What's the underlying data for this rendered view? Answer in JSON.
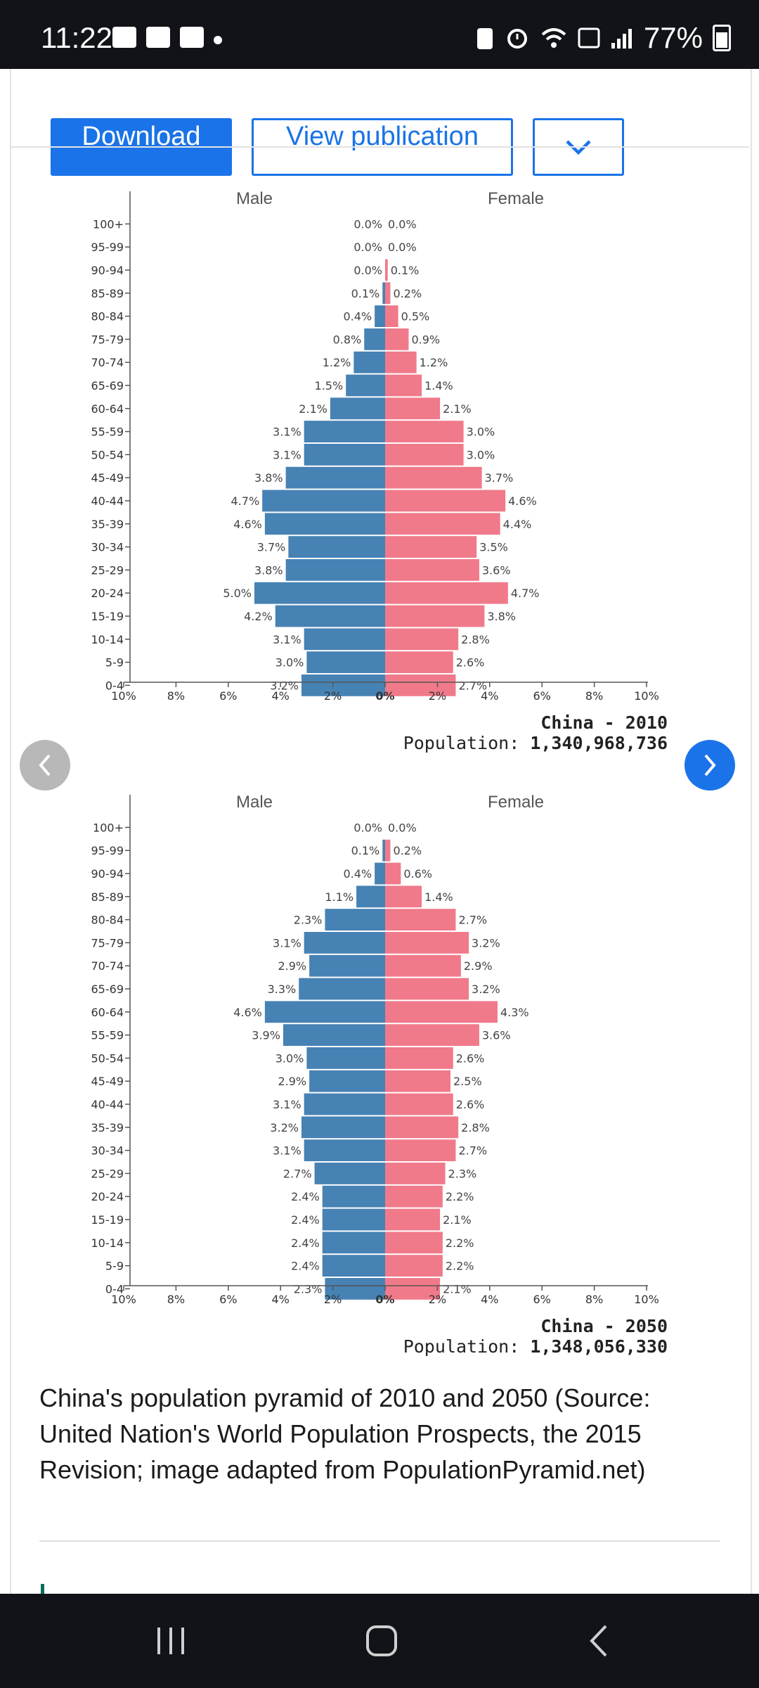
{
  "status_bar": {
    "time": "11:22",
    "battery": "77%"
  },
  "actions": {
    "download": "Download",
    "view_publication": "View publication"
  },
  "carousel": {
    "prev_icon": "chevron-left-icon",
    "next_icon": "chevron-right-icon"
  },
  "caption": "China's population pyramid of 2010 and 2050 (Source: United Nation's World Population Prospects, the 2015 Revision; image adapted from PopulationPyramid.net)",
  "colors": {
    "male": "#4682b4",
    "female": "#f07a8a",
    "accent": "#1a73e8"
  },
  "chart_data": [
    {
      "type": "bar",
      "title": "China - 2010",
      "subtitle_label": "Population:",
      "subtitle_value": "1,340,968,736",
      "male_label": "Male",
      "female_label": "Female",
      "categories": [
        "100+",
        "95-99",
        "90-94",
        "85-89",
        "80-84",
        "75-79",
        "70-74",
        "65-69",
        "60-64",
        "55-59",
        "50-54",
        "45-49",
        "40-44",
        "35-39",
        "30-34",
        "25-29",
        "20-24",
        "15-19",
        "10-14",
        "5-9",
        "0-4"
      ],
      "series": [
        {
          "name": "Male",
          "values": [
            0.0,
            0.0,
            0.0,
            0.1,
            0.4,
            0.8,
            1.2,
            1.5,
            2.1,
            3.1,
            3.1,
            3.8,
            4.7,
            4.6,
            3.7,
            3.8,
            5.0,
            4.2,
            3.1,
            3.0,
            3.2
          ]
        },
        {
          "name": "Female",
          "values": [
            0.0,
            0.0,
            0.1,
            0.2,
            0.5,
            0.9,
            1.2,
            1.4,
            2.1,
            3.0,
            3.0,
            3.7,
            4.6,
            4.4,
            3.5,
            3.6,
            4.7,
            3.8,
            2.8,
            2.6,
            2.7
          ]
        }
      ],
      "data_labels": {
        "male": [
          "0.0%",
          "0.0%",
          "0.0%",
          "0.1%",
          "0.4%",
          "0.8%",
          "1.2%",
          "1.5%",
          "2.1%",
          "3.1%",
          "3.1%",
          "3.8%",
          "4.7%",
          "4.6%",
          "3.7%",
          "3.8%",
          "5.0%",
          "4.2%",
          "3.1%",
          "3.0%",
          "3.2%"
        ],
        "female": [
          "0.0%",
          "0.0%",
          "0.1%",
          "0.2%",
          "0.5%",
          "0.9%",
          "1.2%",
          "1.4%",
          "2.1%",
          "3.0%",
          "3.0%",
          "3.7%",
          "4.6%",
          "4.4%",
          "3.5%",
          "3.6%",
          "4.7%",
          "3.8%",
          "2.8%",
          "2.6%",
          "2.7%"
        ]
      },
      "x_ticks": [
        "10%",
        "8%",
        "6%",
        "4%",
        "2%",
        "0%",
        "2%",
        "4%",
        "6%",
        "8%",
        "10%"
      ],
      "xlim": [
        -10,
        10
      ]
    },
    {
      "type": "bar",
      "title": "China - 2050",
      "subtitle_label": "Population:",
      "subtitle_value": "1,348,056,330",
      "male_label": "Male",
      "female_label": "Female",
      "categories": [
        "100+",
        "95-99",
        "90-94",
        "85-89",
        "80-84",
        "75-79",
        "70-74",
        "65-69",
        "60-64",
        "55-59",
        "50-54",
        "45-49",
        "40-44",
        "35-39",
        "30-34",
        "25-29",
        "20-24",
        "15-19",
        "10-14",
        "5-9",
        "0-4"
      ],
      "series": [
        {
          "name": "Male",
          "values": [
            0.0,
            0.1,
            0.4,
            1.1,
            2.3,
            3.1,
            2.9,
            3.3,
            4.6,
            3.9,
            3.0,
            2.9,
            3.1,
            3.2,
            3.1,
            2.7,
            2.4,
            2.4,
            2.4,
            2.4,
            2.3
          ]
        },
        {
          "name": "Female",
          "values": [
            0.0,
            0.2,
            0.6,
            1.4,
            2.7,
            3.2,
            2.9,
            3.2,
            4.3,
            3.6,
            2.6,
            2.5,
            2.6,
            2.8,
            2.7,
            2.3,
            2.2,
            2.1,
            2.2,
            2.2,
            2.1
          ]
        }
      ],
      "data_labels": {
        "male": [
          "0.0%",
          "0.1%",
          "0.4%",
          "1.1%",
          "2.3%",
          "3.1%",
          "2.9%",
          "3.3%",
          "4.6%",
          "3.9%",
          "3.0%",
          "2.9%",
          "3.1%",
          "3.2%",
          "3.1%",
          "2.7%",
          "2.4%",
          "2.4%",
          "2.4%",
          "2.4%",
          "2.3%"
        ],
        "female": [
          "0.0%",
          "0.2%",
          "0.6%",
          "1.4%",
          "2.7%",
          "3.2%",
          "2.9%",
          "3.2%",
          "4.3%",
          "3.6%",
          "2.6%",
          "2.5%",
          "2.6%",
          "2.8%",
          "2.7%",
          "2.3%",
          "2.2%",
          "2.1%",
          "2.2%",
          "2.2%",
          "2.1%"
        ]
      },
      "x_ticks": [
        "10%",
        "8%",
        "6%",
        "4%",
        "2%",
        "0%",
        "2%",
        "4%",
        "6%",
        "8%",
        "10%"
      ],
      "xlim": [
        -10,
        10
      ]
    }
  ]
}
